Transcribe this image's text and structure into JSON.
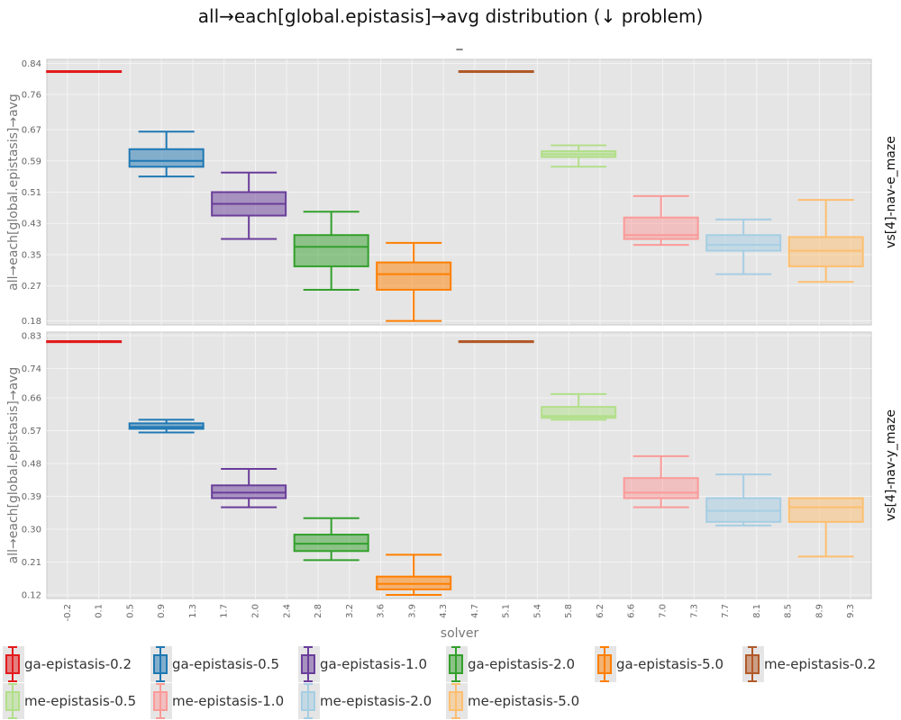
{
  "chart_data": {
    "type": "box",
    "title": "all→each[global.epistasis]→avg distribution (↓ problem)",
    "subtitle": "_",
    "xlabel": "solver",
    "ylabel": "all→each[global.epistasis]→avg",
    "x_ticks": [
      "-0.2",
      "0.1",
      "0.5",
      "0.9",
      "1.3",
      "1.7",
      "2.0",
      "2.4",
      "2.8",
      "3.2",
      "3.6",
      "3.9",
      "4.3",
      "4.7",
      "5.1",
      "5.4",
      "5.8",
      "6.2",
      "6.6",
      "7.0",
      "7.3",
      "7.7",
      "8.1",
      "8.5",
      "8.9",
      "9.3"
    ],
    "xlim": [
      -0.45,
      9.55
    ],
    "legend": {
      "position": "bottom"
    },
    "series": [
      {
        "name": "ga-epistasis-0.2",
        "color": "#e31a1c",
        "x": 0
      },
      {
        "name": "ga-epistasis-0.5",
        "color": "#1f78b4",
        "x": 1
      },
      {
        "name": "ga-epistasis-1.0",
        "color": "#6a3d9a",
        "x": 2
      },
      {
        "name": "ga-epistasis-2.0",
        "color": "#33a02c",
        "x": 3
      },
      {
        "name": "ga-epistasis-5.0",
        "color": "#ff7f00",
        "x": 4
      },
      {
        "name": "me-epistasis-0.2",
        "color": "#b15928",
        "x": 5
      },
      {
        "name": "me-epistasis-0.5",
        "color": "#b2df8a",
        "x": 6
      },
      {
        "name": "me-epistasis-1.0",
        "color": "#fb9a99",
        "x": 7
      },
      {
        "name": "me-epistasis-2.0",
        "color": "#a6cee3",
        "x": 8
      },
      {
        "name": "me-epistasis-5.0",
        "color": "#fdbf6f",
        "x": 9
      }
    ],
    "facets": [
      {
        "label": "vs[4]-nav-e_maze",
        "y_ticks": [
          "0.18",
          "0.27",
          "0.35",
          "0.43",
          "0.51",
          "0.59",
          "0.67",
          "0.76",
          "0.84"
        ],
        "ylim": [
          0.17,
          0.85
        ],
        "boxes": [
          {
            "min": 0.82,
            "q1": 0.82,
            "median": 0.82,
            "q3": 0.82,
            "max": 0.82
          },
          {
            "min": 0.55,
            "q1": 0.575,
            "median": 0.59,
            "q3": 0.62,
            "max": 0.665
          },
          {
            "min": 0.39,
            "q1": 0.45,
            "median": 0.48,
            "q3": 0.51,
            "max": 0.56
          },
          {
            "min": 0.26,
            "q1": 0.32,
            "median": 0.37,
            "q3": 0.4,
            "max": 0.46
          },
          {
            "min": 0.18,
            "q1": 0.26,
            "median": 0.3,
            "q3": 0.33,
            "max": 0.38
          },
          {
            "min": 0.82,
            "q1": 0.82,
            "median": 0.82,
            "q3": 0.82,
            "max": 0.82
          },
          {
            "min": 0.575,
            "q1": 0.6,
            "median": 0.607,
            "q3": 0.615,
            "max": 0.63
          },
          {
            "min": 0.375,
            "q1": 0.39,
            "median": 0.4,
            "q3": 0.445,
            "max": 0.5
          },
          {
            "min": 0.3,
            "q1": 0.36,
            "median": 0.375,
            "q3": 0.4,
            "max": 0.44
          },
          {
            "min": 0.28,
            "q1": 0.32,
            "median": 0.36,
            "q3": 0.395,
            "max": 0.49
          }
        ]
      },
      {
        "label": "vs[4]-nav-y_maze",
        "y_ticks": [
          "0.12",
          "0.21",
          "0.30",
          "0.39",
          "0.48",
          "0.57",
          "0.66",
          "0.74",
          "0.83"
        ],
        "ylim": [
          0.11,
          0.84
        ],
        "boxes": [
          {
            "min": 0.815,
            "q1": 0.815,
            "median": 0.815,
            "q3": 0.815,
            "max": 0.815
          },
          {
            "min": 0.565,
            "q1": 0.575,
            "median": 0.58,
            "q3": 0.59,
            "max": 0.6
          },
          {
            "min": 0.36,
            "q1": 0.385,
            "median": 0.4,
            "q3": 0.42,
            "max": 0.465
          },
          {
            "min": 0.215,
            "q1": 0.24,
            "median": 0.26,
            "q3": 0.285,
            "max": 0.33
          },
          {
            "min": 0.12,
            "q1": 0.135,
            "median": 0.15,
            "q3": 0.17,
            "max": 0.23
          },
          {
            "min": 0.815,
            "q1": 0.815,
            "median": 0.815,
            "q3": 0.815,
            "max": 0.815
          },
          {
            "min": 0.6,
            "q1": 0.605,
            "median": 0.61,
            "q3": 0.635,
            "max": 0.67
          },
          {
            "min": 0.36,
            "q1": 0.385,
            "median": 0.4,
            "q3": 0.44,
            "max": 0.5
          },
          {
            "min": 0.31,
            "q1": 0.32,
            "median": 0.35,
            "q3": 0.385,
            "max": 0.45
          },
          {
            "min": 0.225,
            "q1": 0.32,
            "median": 0.36,
            "q3": 0.385,
            "max": 0.385
          }
        ]
      }
    ]
  }
}
